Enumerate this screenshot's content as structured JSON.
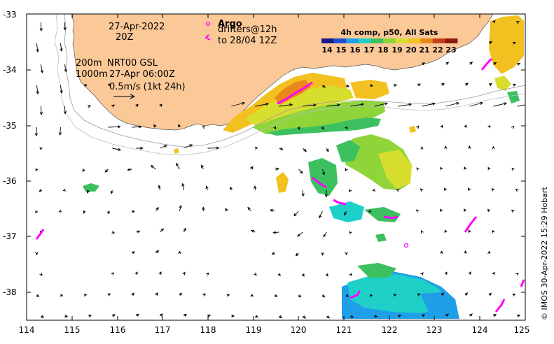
{
  "map": {
    "date_line1": "27-Apr-2022",
    "date_line2": "20Z",
    "depth_line1_depth": "200m",
    "depth_line1_label": "NRT00 GSL",
    "depth_line2_depth": "1000m",
    "depth_line2_label": "27-Apr 06:00Z",
    "scale_label": "0.5m/s (1kt 24h)",
    "argo_label": "Argo",
    "drifters_label": "drifters@12h",
    "drifters_until": "to 28/04 12Z",
    "colorbar_title": "4h comp, p50, All Sats",
    "colorbar_ticks": [
      "14",
      "15",
      "16",
      "17",
      "18",
      "19",
      "20",
      "21",
      "22",
      "23"
    ],
    "colorbar_colors": [
      "#1a1a8c",
      "#1f4fd1",
      "#1e9fe8",
      "#1fd0c8",
      "#3cc060",
      "#8fd53a",
      "#d8de2e",
      "#f2c11f",
      "#e9881a",
      "#c6411a",
      "#8c1a10"
    ],
    "credit": "© IMOS 30-Apr-2022 15:29 Hobart",
    "xticks": [
      "114",
      "115",
      "116",
      "117",
      "118",
      "119",
      "120",
      "121",
      "122",
      "123",
      "124",
      "125"
    ],
    "yticks": [
      "-33",
      "-34",
      "-35",
      "-36",
      "-37",
      "-38"
    ],
    "colors": {
      "land": "#fbc898",
      "drifter": "#ff00ff",
      "arrow": "#000000"
    }
  }
}
